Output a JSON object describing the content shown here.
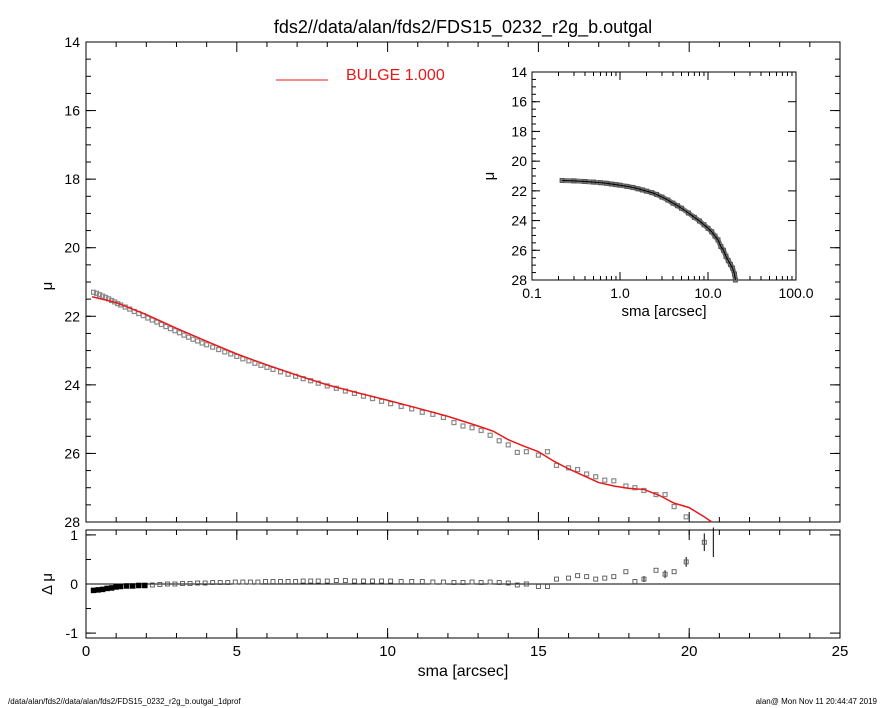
{
  "chart_data": [
    {
      "type": "scatter",
      "panel": "main",
      "title": "fds2//data/alan/fds2/FDS15_0232_r2g_b.outgal",
      "xlabel": "",
      "ylabel": "μ",
      "xlim": [
        0,
        25
      ],
      "ylim": [
        28,
        14
      ],
      "yticks": [
        "14",
        "16",
        "18",
        "20",
        "22",
        "24",
        "26",
        "28"
      ],
      "legend": {
        "label": "BULGE  1.000",
        "color": "#e8191a",
        "position": "top-center"
      },
      "series": [
        {
          "kind": "data-points",
          "points": [
            [
              0.25,
              21.3
            ],
            [
              0.35,
              21.33
            ],
            [
              0.45,
              21.37
            ],
            [
              0.55,
              21.41
            ],
            [
              0.65,
              21.45
            ],
            [
              0.75,
              21.49
            ],
            [
              0.85,
              21.54
            ],
            [
              0.95,
              21.58
            ],
            [
              1.05,
              21.63
            ],
            [
              1.15,
              21.67
            ],
            [
              1.3,
              21.73
            ],
            [
              1.45,
              21.79
            ],
            [
              1.6,
              21.86
            ],
            [
              1.75,
              21.92
            ],
            [
              1.9,
              21.98
            ],
            [
              2.05,
              22.05
            ],
            [
              2.2,
              22.11
            ],
            [
              2.35,
              22.17
            ],
            [
              2.5,
              22.24
            ],
            [
              2.65,
              22.3
            ],
            [
              2.8,
              22.36
            ],
            [
              2.95,
              22.42
            ],
            [
              3.1,
              22.48
            ],
            [
              3.25,
              22.55
            ],
            [
              3.4,
              22.61
            ],
            [
              3.55,
              22.67
            ],
            [
              3.7,
              22.72
            ],
            [
              3.85,
              22.78
            ],
            [
              4.0,
              22.83
            ],
            [
              4.2,
              22.9
            ],
            [
              4.4,
              22.97
            ],
            [
              4.6,
              23.04
            ],
            [
              4.8,
              23.1
            ],
            [
              5.0,
              23.17
            ],
            [
              5.2,
              23.24
            ],
            [
              5.4,
              23.3
            ],
            [
              5.6,
              23.37
            ],
            [
              5.8,
              23.43
            ],
            [
              6.0,
              23.49
            ],
            [
              6.2,
              23.55
            ],
            [
              6.45,
              23.62
            ],
            [
              6.7,
              23.69
            ],
            [
              6.95,
              23.75
            ],
            [
              7.2,
              23.82
            ],
            [
              7.45,
              23.88
            ],
            [
              7.7,
              23.95
            ],
            [
              8.0,
              24.03
            ],
            [
              8.3,
              24.1
            ],
            [
              8.6,
              24.18
            ],
            [
              8.9,
              24.25
            ],
            [
              9.2,
              24.33
            ],
            [
              9.5,
              24.4
            ],
            [
              9.8,
              24.48
            ],
            [
              10.1,
              24.55
            ],
            [
              10.45,
              24.63
            ],
            [
              10.8,
              24.7
            ],
            [
              11.15,
              24.8
            ],
            [
              11.5,
              24.86
            ],
            [
              11.85,
              24.95
            ],
            [
              12.2,
              25.1
            ],
            [
              12.5,
              25.2
            ],
            [
              12.8,
              25.25
            ],
            [
              13.1,
              25.33
            ],
            [
              13.4,
              25.47
            ],
            [
              13.7,
              25.63
            ],
            [
              14.0,
              25.75
            ],
            [
              14.3,
              25.97
            ],
            [
              14.6,
              25.95
            ],
            [
              15.0,
              26.05
            ],
            [
              15.3,
              25.95
            ],
            [
              15.6,
              26.35
            ],
            [
              16.0,
              26.42
            ],
            [
              16.3,
              26.47
            ],
            [
              16.6,
              26.6
            ],
            [
              16.9,
              26.68
            ],
            [
              17.2,
              26.78
            ],
            [
              17.5,
              26.8
            ],
            [
              17.9,
              26.95
            ],
            [
              18.2,
              27.0
            ],
            [
              18.5,
              27.08
            ],
            [
              18.9,
              27.2
            ],
            [
              19.2,
              27.2
            ],
            [
              19.5,
              27.55
            ],
            [
              19.9,
              27.85
            ]
          ],
          "color": "#8a8a8a"
        },
        {
          "kind": "model-line",
          "name": "BULGE",
          "points": [
            [
              0.2,
              21.43
            ],
            [
              1.0,
              21.6
            ],
            [
              2.0,
              21.95
            ],
            [
              3.0,
              22.35
            ],
            [
              4.0,
              22.73
            ],
            [
              5.0,
              23.1
            ],
            [
              6.0,
              23.42
            ],
            [
              7.0,
              23.72
            ],
            [
              8.0,
              24.0
            ],
            [
              9.0,
              24.23
            ],
            [
              10.0,
              24.45
            ],
            [
              11.0,
              24.68
            ],
            [
              12.0,
              24.92
            ],
            [
              13.0,
              25.2
            ],
            [
              13.5,
              25.35
            ],
            [
              14.0,
              25.6
            ],
            [
              14.5,
              25.78
            ],
            [
              15.0,
              25.95
            ],
            [
              15.5,
              26.22
            ],
            [
              16.0,
              26.45
            ],
            [
              16.5,
              26.65
            ],
            [
              17.0,
              26.85
            ],
            [
              17.5,
              26.95
            ],
            [
              18.0,
              27.02
            ],
            [
              18.5,
              27.05
            ],
            [
              19.0,
              27.22
            ],
            [
              19.5,
              27.45
            ],
            [
              20.0,
              27.58
            ],
            [
              20.5,
              27.85
            ],
            [
              20.75,
              28.0
            ]
          ],
          "color": "#e8191a"
        }
      ]
    },
    {
      "type": "scatter",
      "panel": "inset",
      "xlabel": "sma [arcsec]",
      "ylabel": "μ",
      "xscale": "log",
      "xlim": [
        0.1,
        100
      ],
      "ylim": [
        28,
        14
      ],
      "xticks": [
        "0.1",
        "1.0",
        "10.0",
        "100.0"
      ],
      "yticks": [
        "14",
        "16",
        "18",
        "20",
        "22",
        "24",
        "26",
        "28"
      ],
      "series": [
        {
          "kind": "data-points",
          "points": [
            [
              0.22,
              21.3
            ],
            [
              0.3,
              21.33
            ],
            [
              0.4,
              21.37
            ],
            [
              0.5,
              21.41
            ],
            [
              0.6,
              21.45
            ],
            [
              0.7,
              21.49
            ],
            [
              0.8,
              21.54
            ],
            [
              0.9,
              21.58
            ],
            [
              1.0,
              21.62
            ],
            [
              1.2,
              21.7
            ],
            [
              1.4,
              21.77
            ],
            [
              1.6,
              21.86
            ],
            [
              1.8,
              21.94
            ],
            [
              2.0,
              22.02
            ],
            [
              2.3,
              22.12
            ],
            [
              2.6,
              22.24
            ],
            [
              3.0,
              22.42
            ],
            [
              3.5,
              22.62
            ],
            [
              4.0,
              22.83
            ],
            [
              4.5,
              23.0
            ],
            [
              5.0,
              23.17
            ],
            [
              6.0,
              23.49
            ],
            [
              7.0,
              23.78
            ],
            [
              8.0,
              24.03
            ],
            [
              9.0,
              24.28
            ],
            [
              10.0,
              24.52
            ],
            [
              11.0,
              24.75
            ],
            [
              12.0,
              25.05
            ],
            [
              13.0,
              25.3
            ],
            [
              14.0,
              25.75
            ],
            [
              15.0,
              26.0
            ],
            [
              16.0,
              26.4
            ],
            [
              17.0,
              26.7
            ],
            [
              18.0,
              26.95
            ],
            [
              19.0,
              27.2
            ],
            [
              20.0,
              27.6
            ],
            [
              20.5,
              28.0
            ]
          ],
          "color": "#8a8a8a"
        }
      ]
    },
    {
      "type": "scatter",
      "panel": "residual",
      "xlabel": "sma [arcsec]",
      "ylabel": "Δ μ",
      "xlim": [
        0,
        25
      ],
      "ylim": [
        -1.1,
        1.1
      ],
      "xticks": [
        "0",
        "5",
        "10",
        "15",
        "20",
        "25"
      ],
      "yticks": [
        "1",
        "0",
        "-1"
      ],
      "series": [
        {
          "kind": "residual-points",
          "points": [
            [
              0.25,
              -0.13
            ],
            [
              0.4,
              -0.12
            ],
            [
              0.55,
              -0.11
            ],
            [
              0.7,
              -0.09
            ],
            [
              0.85,
              -0.08
            ],
            [
              1.0,
              -0.06
            ],
            [
              1.15,
              -0.05
            ],
            [
              1.35,
              -0.04
            ],
            [
              1.55,
              -0.04
            ],
            [
              1.75,
              -0.03
            ],
            [
              1.95,
              -0.03
            ],
            [
              2.2,
              -0.02
            ],
            [
              2.45,
              -0.01
            ],
            [
              2.7,
              0.0
            ],
            [
              2.95,
              0.0
            ],
            [
              3.2,
              0.01
            ],
            [
              3.45,
              0.01
            ],
            [
              3.7,
              0.02
            ],
            [
              3.95,
              0.02
            ],
            [
              4.2,
              0.03
            ],
            [
              4.45,
              0.03
            ],
            [
              4.7,
              0.03
            ],
            [
              4.95,
              0.04
            ],
            [
              5.2,
              0.04
            ],
            [
              5.45,
              0.04
            ],
            [
              5.7,
              0.04
            ],
            [
              5.95,
              0.05
            ],
            [
              6.2,
              0.05
            ],
            [
              6.45,
              0.05
            ],
            [
              6.7,
              0.05
            ],
            [
              6.95,
              0.05
            ],
            [
              7.2,
              0.06
            ],
            [
              7.45,
              0.06
            ],
            [
              7.7,
              0.06
            ],
            [
              8.0,
              0.06
            ],
            [
              8.3,
              0.07
            ],
            [
              8.6,
              0.07
            ],
            [
              8.9,
              0.06
            ],
            [
              9.2,
              0.06
            ],
            [
              9.5,
              0.06
            ],
            [
              9.8,
              0.06
            ],
            [
              10.1,
              0.06
            ],
            [
              10.45,
              0.05
            ],
            [
              10.8,
              0.05
            ],
            [
              11.15,
              0.05
            ],
            [
              11.5,
              0.04
            ],
            [
              11.85,
              0.04
            ],
            [
              12.2,
              0.03
            ],
            [
              12.5,
              0.03
            ],
            [
              12.8,
              0.04
            ],
            [
              13.1,
              0.03
            ],
            [
              13.4,
              0.04
            ],
            [
              13.7,
              0.03
            ],
            [
              14.0,
              0.02
            ],
            [
              14.3,
              -0.02
            ],
            [
              14.6,
              0.0
            ],
            [
              15.0,
              -0.05
            ],
            [
              15.3,
              -0.05
            ],
            [
              15.6,
              0.1
            ],
            [
              16.0,
              0.12
            ],
            [
              16.3,
              0.17
            ],
            [
              16.6,
              0.15
            ],
            [
              16.9,
              0.1
            ],
            [
              17.2,
              0.12
            ],
            [
              17.5,
              0.15
            ],
            [
              17.9,
              0.25
            ],
            [
              18.2,
              0.05
            ],
            [
              18.5,
              0.1
            ],
            [
              18.9,
              0.28
            ],
            [
              19.2,
              0.2
            ],
            [
              19.5,
              0.25
            ],
            [
              19.9,
              0.45
            ],
            [
              20.5,
              0.85
            ]
          ],
          "errors": [
            [
              18.5,
              0.06
            ],
            [
              19.2,
              0.08
            ],
            [
              19.9,
              0.1
            ],
            [
              20.5,
              0.18
            ],
            [
              20.8,
              0.3
            ]
          ],
          "color": "#000000"
        }
      ]
    }
  ],
  "footer": {
    "left": "/data/alan/fds2//data/alan/fds2/FDS15_0232_r2g_b.outgal_1dprof",
    "right": "alan@  Mon Nov 11 20:44:47 2019"
  }
}
